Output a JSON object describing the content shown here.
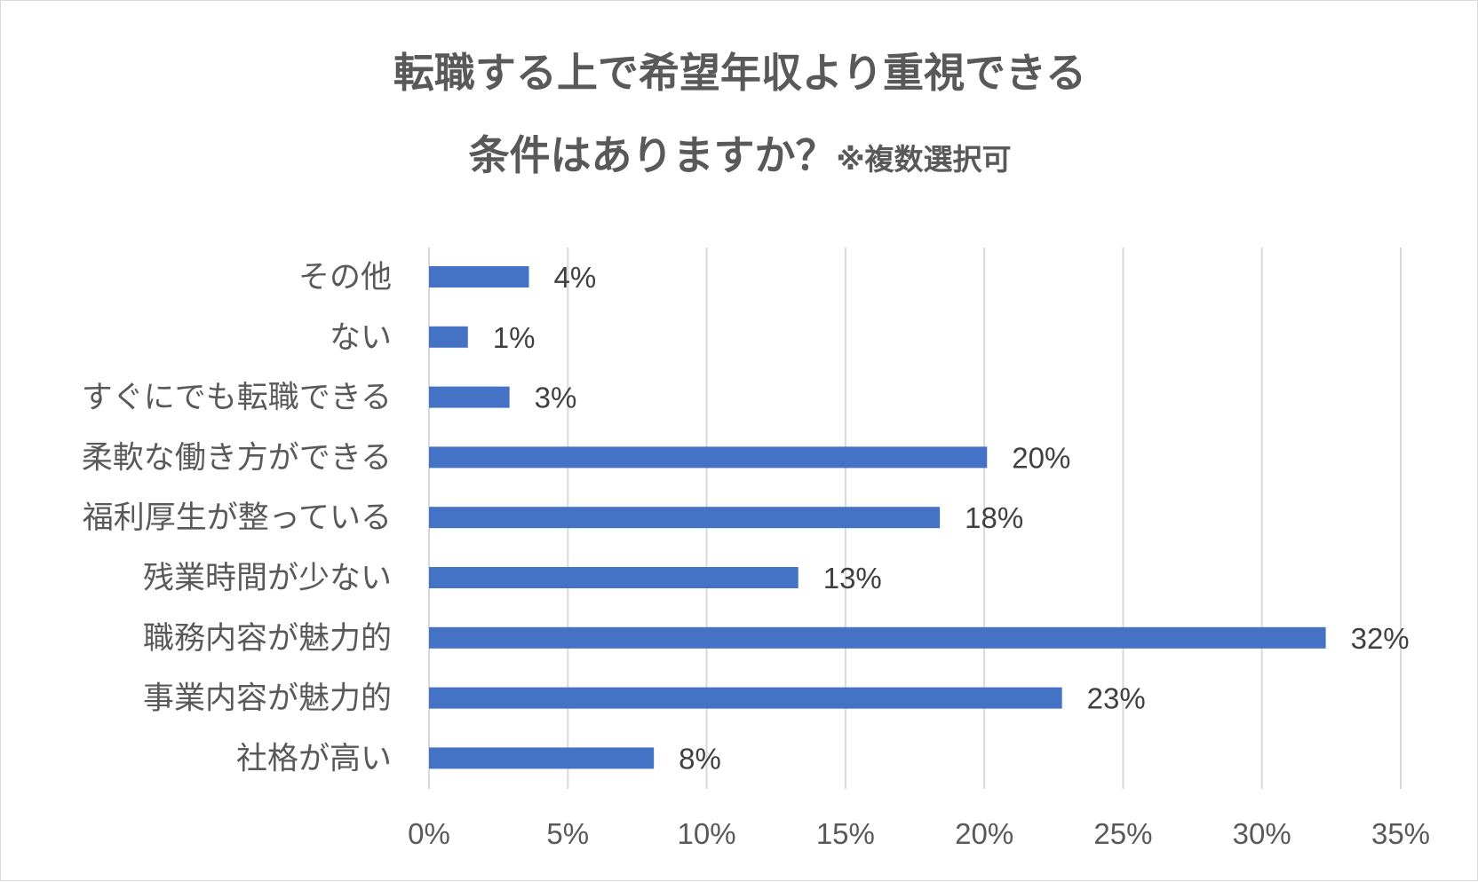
{
  "chart_data": {
    "type": "bar",
    "orientation": "horizontal",
    "title_line1": "転職する上で希望年収より重視できる",
    "title_line2": "条件はありますか？",
    "title_note": "※複数選択可",
    "categories": [
      "その他",
      "ない",
      "すぐにでも転職できる",
      "柔軟な働き方ができる",
      "福利厚生が整っている",
      "残業時間が少ない",
      "職務内容が魅力的",
      "事業内容が魅力的",
      "社格が高い"
    ],
    "values": [
      3.6,
      1.4,
      2.9,
      20.1,
      18.4,
      13.3,
      32.3,
      22.8,
      8.1
    ],
    "data_labels": [
      "4%",
      "1%",
      "3%",
      "20%",
      "18%",
      "13%",
      "32%",
      "23%",
      "8%"
    ],
    "xlim": [
      0,
      35
    ],
    "x_ticks": [
      "0%",
      "5%",
      "10%",
      "15%",
      "20%",
      "25%",
      "30%",
      "35%"
    ],
    "bar_color": "#4472c4",
    "grid": true,
    "legend": "none"
  }
}
